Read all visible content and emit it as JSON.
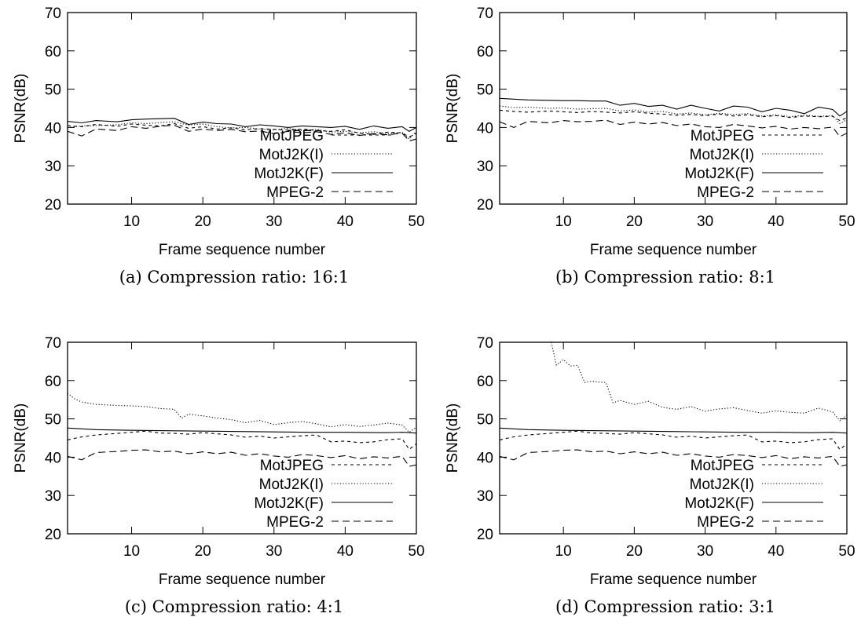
{
  "chart_data": [
    {
      "type": "line",
      "caption": "(a) Compression ratio: 16:1",
      "xlabel": "Frame sequence number",
      "ylabel": "PSNR(dB)",
      "xlim": [
        1,
        50
      ],
      "ylim": [
        20,
        70
      ],
      "xticks": [
        10,
        20,
        30,
        40,
        50
      ],
      "yticks": [
        20,
        30,
        40,
        50,
        60,
        70
      ],
      "legend_position": "bottom-right",
      "grid": false,
      "series": [
        {
          "name": "MotJPEG",
          "x": [
            1,
            3,
            5,
            8,
            10,
            12,
            14,
            16,
            18,
            20,
            22,
            24,
            26,
            28,
            30,
            32,
            34,
            36,
            38,
            40,
            42,
            44,
            46,
            48,
            49,
            50
          ],
          "y": [
            40.5,
            40.2,
            40.8,
            40.3,
            40.9,
            40.6,
            40.4,
            41.0,
            39.8,
            40.2,
            39.6,
            39.9,
            39.4,
            39.7,
            39.5,
            39.3,
            39.6,
            39.2,
            39.0,
            39.4,
            38.5,
            38.2,
            38.8,
            38.6,
            37.5,
            38.5
          ],
          "style": "dashed-fine"
        },
        {
          "name": "MotJ2K(I)",
          "x": [
            1,
            3,
            5,
            8,
            10,
            12,
            14,
            16,
            18,
            20,
            22,
            24,
            26,
            28,
            30,
            32,
            34,
            36,
            38,
            40,
            42,
            44,
            46,
            48,
            49,
            50
          ],
          "y": [
            40.0,
            40.4,
            40.5,
            40.7,
            41.2,
            41.0,
            41.3,
            41.5,
            40.6,
            40.9,
            40.2,
            39.9,
            40.0,
            39.6,
            39.4,
            39.8,
            39.2,
            39.5,
            38.8,
            39.0,
            38.6,
            38.9,
            38.4,
            38.7,
            37.0,
            39.0
          ],
          "style": "dotted"
        },
        {
          "name": "MotJ2K(F)",
          "x": [
            1,
            3,
            5,
            8,
            10,
            12,
            14,
            16,
            18,
            20,
            22,
            24,
            26,
            28,
            30,
            32,
            34,
            36,
            38,
            40,
            42,
            44,
            46,
            48,
            49,
            50
          ],
          "y": [
            41.6,
            41.2,
            41.8,
            41.5,
            42.0,
            42.2,
            42.3,
            42.4,
            40.8,
            41.4,
            41.0,
            40.9,
            40.2,
            40.7,
            40.4,
            40.0,
            40.4,
            40.2,
            40.0,
            40.3,
            39.5,
            40.4,
            39.8,
            40.2,
            39.0,
            40.0
          ],
          "style": "solid"
        },
        {
          "name": "MPEG-2",
          "x": [
            1,
            3,
            5,
            8,
            10,
            12,
            14,
            16,
            18,
            20,
            22,
            24,
            26,
            28,
            30,
            32,
            34,
            36,
            38,
            40,
            42,
            44,
            46,
            48,
            49,
            50
          ],
          "y": [
            39.0,
            37.8,
            39.6,
            39.2,
            40.2,
            39.8,
            40.3,
            40.6,
            39.0,
            39.6,
            39.2,
            39.5,
            38.9,
            39.1,
            38.4,
            39.0,
            38.6,
            38.9,
            38.2,
            38.6,
            37.9,
            38.4,
            38.1,
            38.5,
            36.5,
            37.0
          ],
          "style": "dashed"
        }
      ]
    },
    {
      "type": "line",
      "caption": "(b) Compression ratio: 8:1",
      "xlabel": "Frame sequence number",
      "ylabel": "PSNR(dB)",
      "xlim": [
        1,
        50
      ],
      "ylim": [
        20,
        70
      ],
      "xticks": [
        10,
        20,
        30,
        40,
        50
      ],
      "yticks": [
        20,
        30,
        40,
        50,
        60,
        70
      ],
      "legend_position": "bottom-right",
      "grid": false,
      "series": [
        {
          "name": "MotJPEG",
          "x": [
            1,
            3,
            5,
            8,
            10,
            12,
            14,
            16,
            18,
            20,
            22,
            24,
            26,
            28,
            30,
            32,
            34,
            36,
            38,
            40,
            42,
            44,
            46,
            48,
            49,
            50
          ],
          "y": [
            44.5,
            44.2,
            44.0,
            44.3,
            44.1,
            43.9,
            44.2,
            44.0,
            43.8,
            44.1,
            43.7,
            43.5,
            43.2,
            43.4,
            43.1,
            43.5,
            43.0,
            43.3,
            42.8,
            43.1,
            42.6,
            43.0,
            42.8,
            42.9,
            41.8,
            42.5
          ],
          "style": "dashed-fine"
        },
        {
          "name": "MotJ2K(I)",
          "x": [
            1,
            3,
            5,
            8,
            10,
            12,
            14,
            16,
            18,
            20,
            22,
            24,
            26,
            28,
            30,
            32,
            34,
            36,
            38,
            40,
            42,
            44,
            46,
            48,
            49,
            50
          ],
          "y": [
            45.6,
            45.2,
            45.3,
            45.0,
            45.1,
            44.8,
            44.9,
            45.0,
            44.3,
            44.6,
            44.0,
            44.2,
            43.5,
            43.8,
            43.3,
            43.7,
            43.4,
            43.6,
            43.0,
            43.3,
            42.8,
            43.2,
            42.9,
            43.1,
            41.0,
            42.0
          ],
          "style": "dotted"
        },
        {
          "name": "MotJ2K(F)",
          "x": [
            1,
            3,
            5,
            8,
            10,
            12,
            14,
            16,
            18,
            20,
            22,
            24,
            26,
            28,
            30,
            32,
            34,
            36,
            38,
            40,
            42,
            44,
            46,
            48,
            49,
            50
          ],
          "y": [
            47.6,
            47.4,
            47.2,
            47.1,
            47.0,
            47.0,
            46.9,
            46.9,
            45.8,
            46.3,
            45.5,
            45.8,
            44.8,
            45.8,
            45.0,
            44.3,
            45.6,
            45.3,
            44.1,
            45.0,
            44.5,
            43.6,
            45.3,
            44.7,
            43.0,
            44.2
          ],
          "style": "solid"
        },
        {
          "name": "MPEG-2",
          "x": [
            1,
            3,
            5,
            8,
            10,
            12,
            14,
            16,
            18,
            20,
            22,
            24,
            26,
            28,
            30,
            32,
            34,
            36,
            38,
            40,
            42,
            44,
            46,
            48,
            49,
            50
          ],
          "y": [
            41.5,
            40.0,
            41.6,
            41.2,
            41.8,
            41.5,
            41.6,
            41.9,
            40.8,
            41.4,
            40.9,
            41.3,
            40.5,
            40.9,
            40.2,
            40.0,
            40.8,
            40.4,
            39.9,
            40.3,
            39.6,
            40.0,
            39.7,
            40.1,
            37.6,
            38.5
          ],
          "style": "dashed"
        }
      ]
    },
    {
      "type": "line",
      "caption": "(c) Compression ratio: 4:1",
      "xlabel": "Frame sequence number",
      "ylabel": "PSNR(dB)",
      "xlim": [
        1,
        50
      ],
      "ylim": [
        20,
        70
      ],
      "xticks": [
        10,
        20,
        30,
        40,
        50
      ],
      "yticks": [
        20,
        30,
        40,
        50,
        60,
        70
      ],
      "legend_position": "bottom-right",
      "grid": false,
      "series": [
        {
          "name": "MotJPEG",
          "x": [
            1,
            3,
            5,
            8,
            10,
            12,
            14,
            16,
            18,
            20,
            22,
            24,
            26,
            28,
            30,
            32,
            34,
            36,
            38,
            40,
            42,
            44,
            46,
            48,
            49,
            50
          ],
          "y": [
            44.5,
            45.3,
            45.8,
            46.2,
            46.5,
            46.8,
            46.3,
            46.2,
            46.0,
            46.4,
            46.1,
            45.8,
            45.2,
            45.5,
            45.0,
            45.3,
            45.6,
            45.8,
            44.0,
            44.2,
            43.8,
            44.0,
            44.6,
            44.8,
            42.0,
            43.5
          ],
          "style": "dashed-fine"
        },
        {
          "name": "MotJ2K(I)",
          "x": [
            1,
            2,
            3,
            5,
            8,
            10,
            12,
            14,
            16,
            17,
            18,
            20,
            22,
            24,
            26,
            28,
            30,
            32,
            34,
            36,
            38,
            40,
            42,
            44,
            46,
            48,
            49,
            50
          ],
          "y": [
            56.7,
            55.2,
            54.4,
            53.8,
            53.5,
            53.4,
            53.2,
            52.7,
            52.5,
            50.2,
            51.2,
            50.8,
            50.2,
            49.8,
            49.0,
            49.6,
            48.5,
            49.0,
            49.3,
            48.7,
            47.9,
            48.5,
            48.0,
            48.4,
            48.9,
            48.4,
            46.5,
            47.8
          ],
          "style": "dotted"
        },
        {
          "name": "MotJ2K(F)",
          "x": [
            1,
            5,
            10,
            15,
            20,
            25,
            30,
            35,
            40,
            45,
            48,
            50
          ],
          "y": [
            47.6,
            47.2,
            47.0,
            46.9,
            46.8,
            46.7,
            46.6,
            46.5,
            46.5,
            46.4,
            46.5,
            46.3
          ],
          "style": "solid"
        },
        {
          "name": "MPEG-2",
          "x": [
            1,
            3,
            5,
            8,
            10,
            12,
            14,
            16,
            18,
            20,
            22,
            24,
            26,
            28,
            30,
            32,
            34,
            36,
            38,
            40,
            42,
            44,
            46,
            48,
            49,
            50
          ],
          "y": [
            40.2,
            39.3,
            41.2,
            41.5,
            41.8,
            41.9,
            41.4,
            41.6,
            40.9,
            41.4,
            40.9,
            41.3,
            40.5,
            40.9,
            40.3,
            40.0,
            40.7,
            40.4,
            39.9,
            40.4,
            39.6,
            40.1,
            39.8,
            40.2,
            37.6,
            38.0
          ],
          "style": "dashed"
        }
      ]
    },
    {
      "type": "line",
      "caption": "(d) Compression ratio: 3:1",
      "xlabel": "Frame sequence number",
      "ylabel": "PSNR(dB)",
      "xlim": [
        1,
        50
      ],
      "ylim": [
        20,
        70
      ],
      "xticks": [
        10,
        20,
        30,
        40,
        50
      ],
      "yticks": [
        20,
        30,
        40,
        50,
        60,
        70
      ],
      "legend_position": "bottom-right",
      "grid": false,
      "series": [
        {
          "name": "MotJPEG",
          "x": [
            1,
            3,
            5,
            8,
            10,
            12,
            14,
            16,
            18,
            20,
            22,
            24,
            26,
            28,
            30,
            32,
            34,
            36,
            38,
            40,
            42,
            44,
            46,
            48,
            49,
            50
          ],
          "y": [
            44.5,
            45.3,
            45.8,
            46.2,
            46.5,
            46.8,
            46.3,
            46.2,
            46.0,
            46.4,
            46.1,
            45.8,
            45.2,
            45.5,
            45.0,
            45.3,
            45.6,
            45.8,
            44.0,
            44.2,
            43.8,
            44.0,
            44.6,
            44.8,
            42.0,
            43.5
          ],
          "style": "dashed-fine"
        },
        {
          "name": "MotJ2K(I)",
          "x": [
            8.3,
            9,
            10,
            11,
            12,
            13,
            14,
            15,
            16,
            17,
            18,
            20,
            22,
            24,
            26,
            28,
            30,
            32,
            34,
            36,
            38,
            40,
            42,
            44,
            46,
            48,
            49,
            50
          ],
          "y": [
            70,
            64.0,
            65.5,
            63.8,
            64.0,
            59.5,
            59.8,
            59.6,
            59.5,
            54.2,
            54.8,
            53.8,
            54.6,
            53.0,
            52.5,
            53.2,
            52.0,
            52.6,
            52.9,
            52.2,
            51.5,
            52.1,
            51.7,
            51.5,
            52.8,
            51.8,
            49.5,
            51.0
          ],
          "style": "dotted"
        },
        {
          "name": "MotJ2K(F)",
          "x": [
            1,
            5,
            10,
            15,
            20,
            25,
            30,
            35,
            40,
            45,
            48,
            50
          ],
          "y": [
            47.6,
            47.2,
            47.0,
            46.9,
            46.8,
            46.7,
            46.6,
            46.5,
            46.5,
            46.4,
            46.5,
            46.3
          ],
          "style": "solid"
        },
        {
          "name": "MPEG-2",
          "x": [
            1,
            3,
            5,
            8,
            10,
            12,
            14,
            16,
            18,
            20,
            22,
            24,
            26,
            28,
            30,
            32,
            34,
            36,
            38,
            40,
            42,
            44,
            46,
            48,
            49,
            50
          ],
          "y": [
            40.2,
            39.3,
            41.2,
            41.5,
            41.8,
            41.9,
            41.4,
            41.6,
            40.9,
            41.4,
            40.9,
            41.3,
            40.5,
            40.9,
            40.3,
            40.0,
            40.7,
            40.4,
            39.9,
            40.4,
            39.6,
            40.1,
            39.8,
            40.2,
            37.6,
            38.0
          ],
          "style": "dashed"
        }
      ]
    }
  ]
}
